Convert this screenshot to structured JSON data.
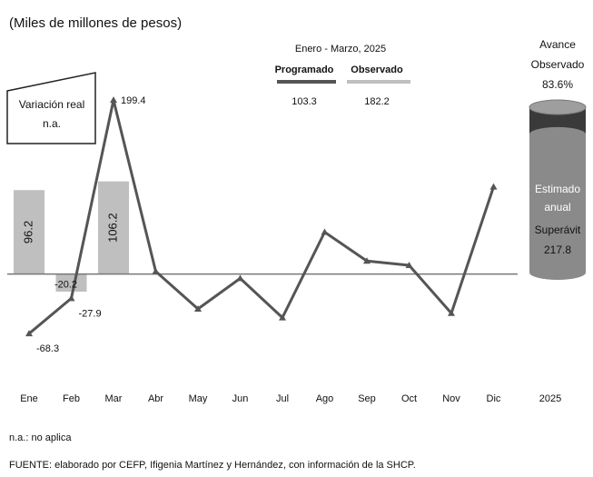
{
  "chart_data": {
    "type": "bar",
    "title": "(Miles de millones de pesos)",
    "categories": [
      "Ene",
      "Feb",
      "Mar",
      "Abr",
      "May",
      "Jun",
      "Jul",
      "Ago",
      "Sep",
      "Oct",
      "Nov",
      "Dic"
    ],
    "series": [
      {
        "name": "Programado",
        "kind": "line",
        "color": "#555555",
        "values": [
          -68.3,
          -27.9,
          199.4,
          3,
          -40,
          -5,
          -50,
          48,
          15,
          10,
          -45,
          100
        ]
      },
      {
        "name": "Observado",
        "kind": "bar",
        "color": "#bfbfbf",
        "values": [
          96.2,
          -20.2,
          106.2,
          null,
          null,
          null,
          null,
          null,
          null,
          null,
          null,
          null
        ]
      }
    ],
    "data_labels": {
      "line": [
        {
          "index": 0,
          "text": "-68.3"
        },
        {
          "index": 1,
          "text": "-27.9"
        },
        {
          "index": 2,
          "text": "199.4"
        }
      ],
      "bar": [
        {
          "index": 0,
          "text": "96.2"
        },
        {
          "index": 1,
          "text": "-20.2"
        },
        {
          "index": 2,
          "text": "106.2"
        }
      ]
    },
    "ylim": [
      -90,
      210
    ],
    "grid": false,
    "legend": {
      "period": "Enero - Marzo, 2025",
      "entries": [
        {
          "label": "Programado",
          "value": "103.3",
          "color": "#555555"
        },
        {
          "label": "Observado",
          "value": "182.2",
          "color": "#bfbfbf"
        }
      ]
    },
    "variation_box": {
      "line1": "Variación real",
      "line2": "n.a."
    },
    "annual": {
      "category": "2025",
      "header": [
        "Avance",
        "Observado",
        "83.6%"
      ],
      "progress": 0.836,
      "label_estimado": [
        "Estimado",
        "anual"
      ],
      "label_superavit": [
        "Superávit",
        "217.8"
      ],
      "color_top": "#9e9e9e",
      "color_mid": "#3a3a3a",
      "color_bottom": "#8a8a8a"
    }
  },
  "notes": {
    "na": "n.a.: no aplica",
    "source": "FUENTE: elaborado por CEFP, Ifigenia Martínez y Hernández, con información de la SHCP."
  }
}
